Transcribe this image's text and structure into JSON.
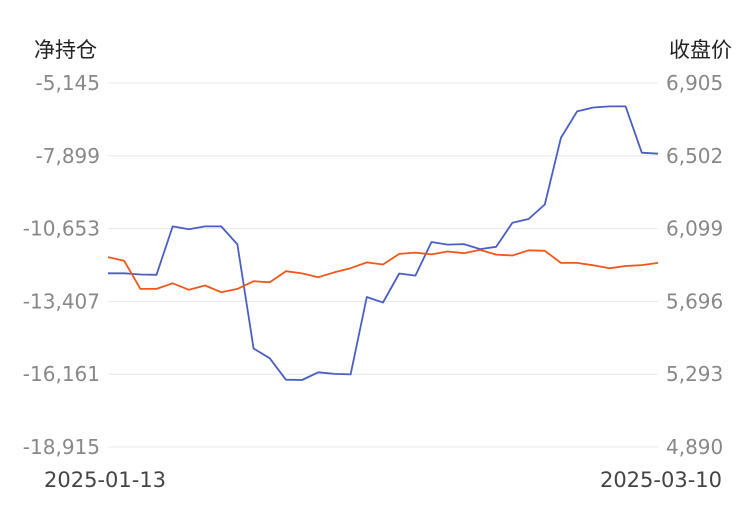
{
  "chart_data": {
    "type": "line",
    "left_axis_title": "净持仓",
    "right_axis_title": "收盘价",
    "x_start_label": "2025-01-13",
    "x_end_label": "2025-03-10",
    "left_ticks": [
      "-5,145",
      "-7,899",
      "-10,653",
      "-13,407",
      "-16,161",
      "-18,915"
    ],
    "right_ticks": [
      "6,905",
      "6,502",
      "6,099",
      "5,696",
      "5,293",
      "4,890"
    ],
    "left_ylim": [
      -18915,
      -5145
    ],
    "right_ylim": [
      4890,
      6905
    ],
    "grid": true,
    "series": [
      {
        "axis": "left",
        "color": "#4a5fc1",
        "values": [
          -12345,
          -12345,
          -12390,
          -12400,
          -10570,
          -10680,
          -10570,
          -10570,
          -11250,
          -15190,
          -15560,
          -16370,
          -16380,
          -16090,
          -16150,
          -16170,
          -13240,
          -13450,
          -12350,
          -12430,
          -11160,
          -11260,
          -11240,
          -11430,
          -11340,
          -10430,
          -10290,
          -9740,
          -7220,
          -6220,
          -6070,
          -6030,
          -6030,
          -7780,
          -7820
        ]
      },
      {
        "axis": "right",
        "color": "#f0571a",
        "values": [
          5941,
          5921,
          5765,
          5765,
          5796,
          5760,
          5784,
          5747,
          5765,
          5808,
          5802,
          5863,
          5851,
          5830,
          5857,
          5880,
          5912,
          5900,
          5959,
          5966,
          5956,
          5972,
          5963,
          5981,
          5955,
          5950,
          5979,
          5976,
          5909,
          5909,
          5896,
          5879,
          5892,
          5897,
          5909
        ]
      }
    ]
  }
}
